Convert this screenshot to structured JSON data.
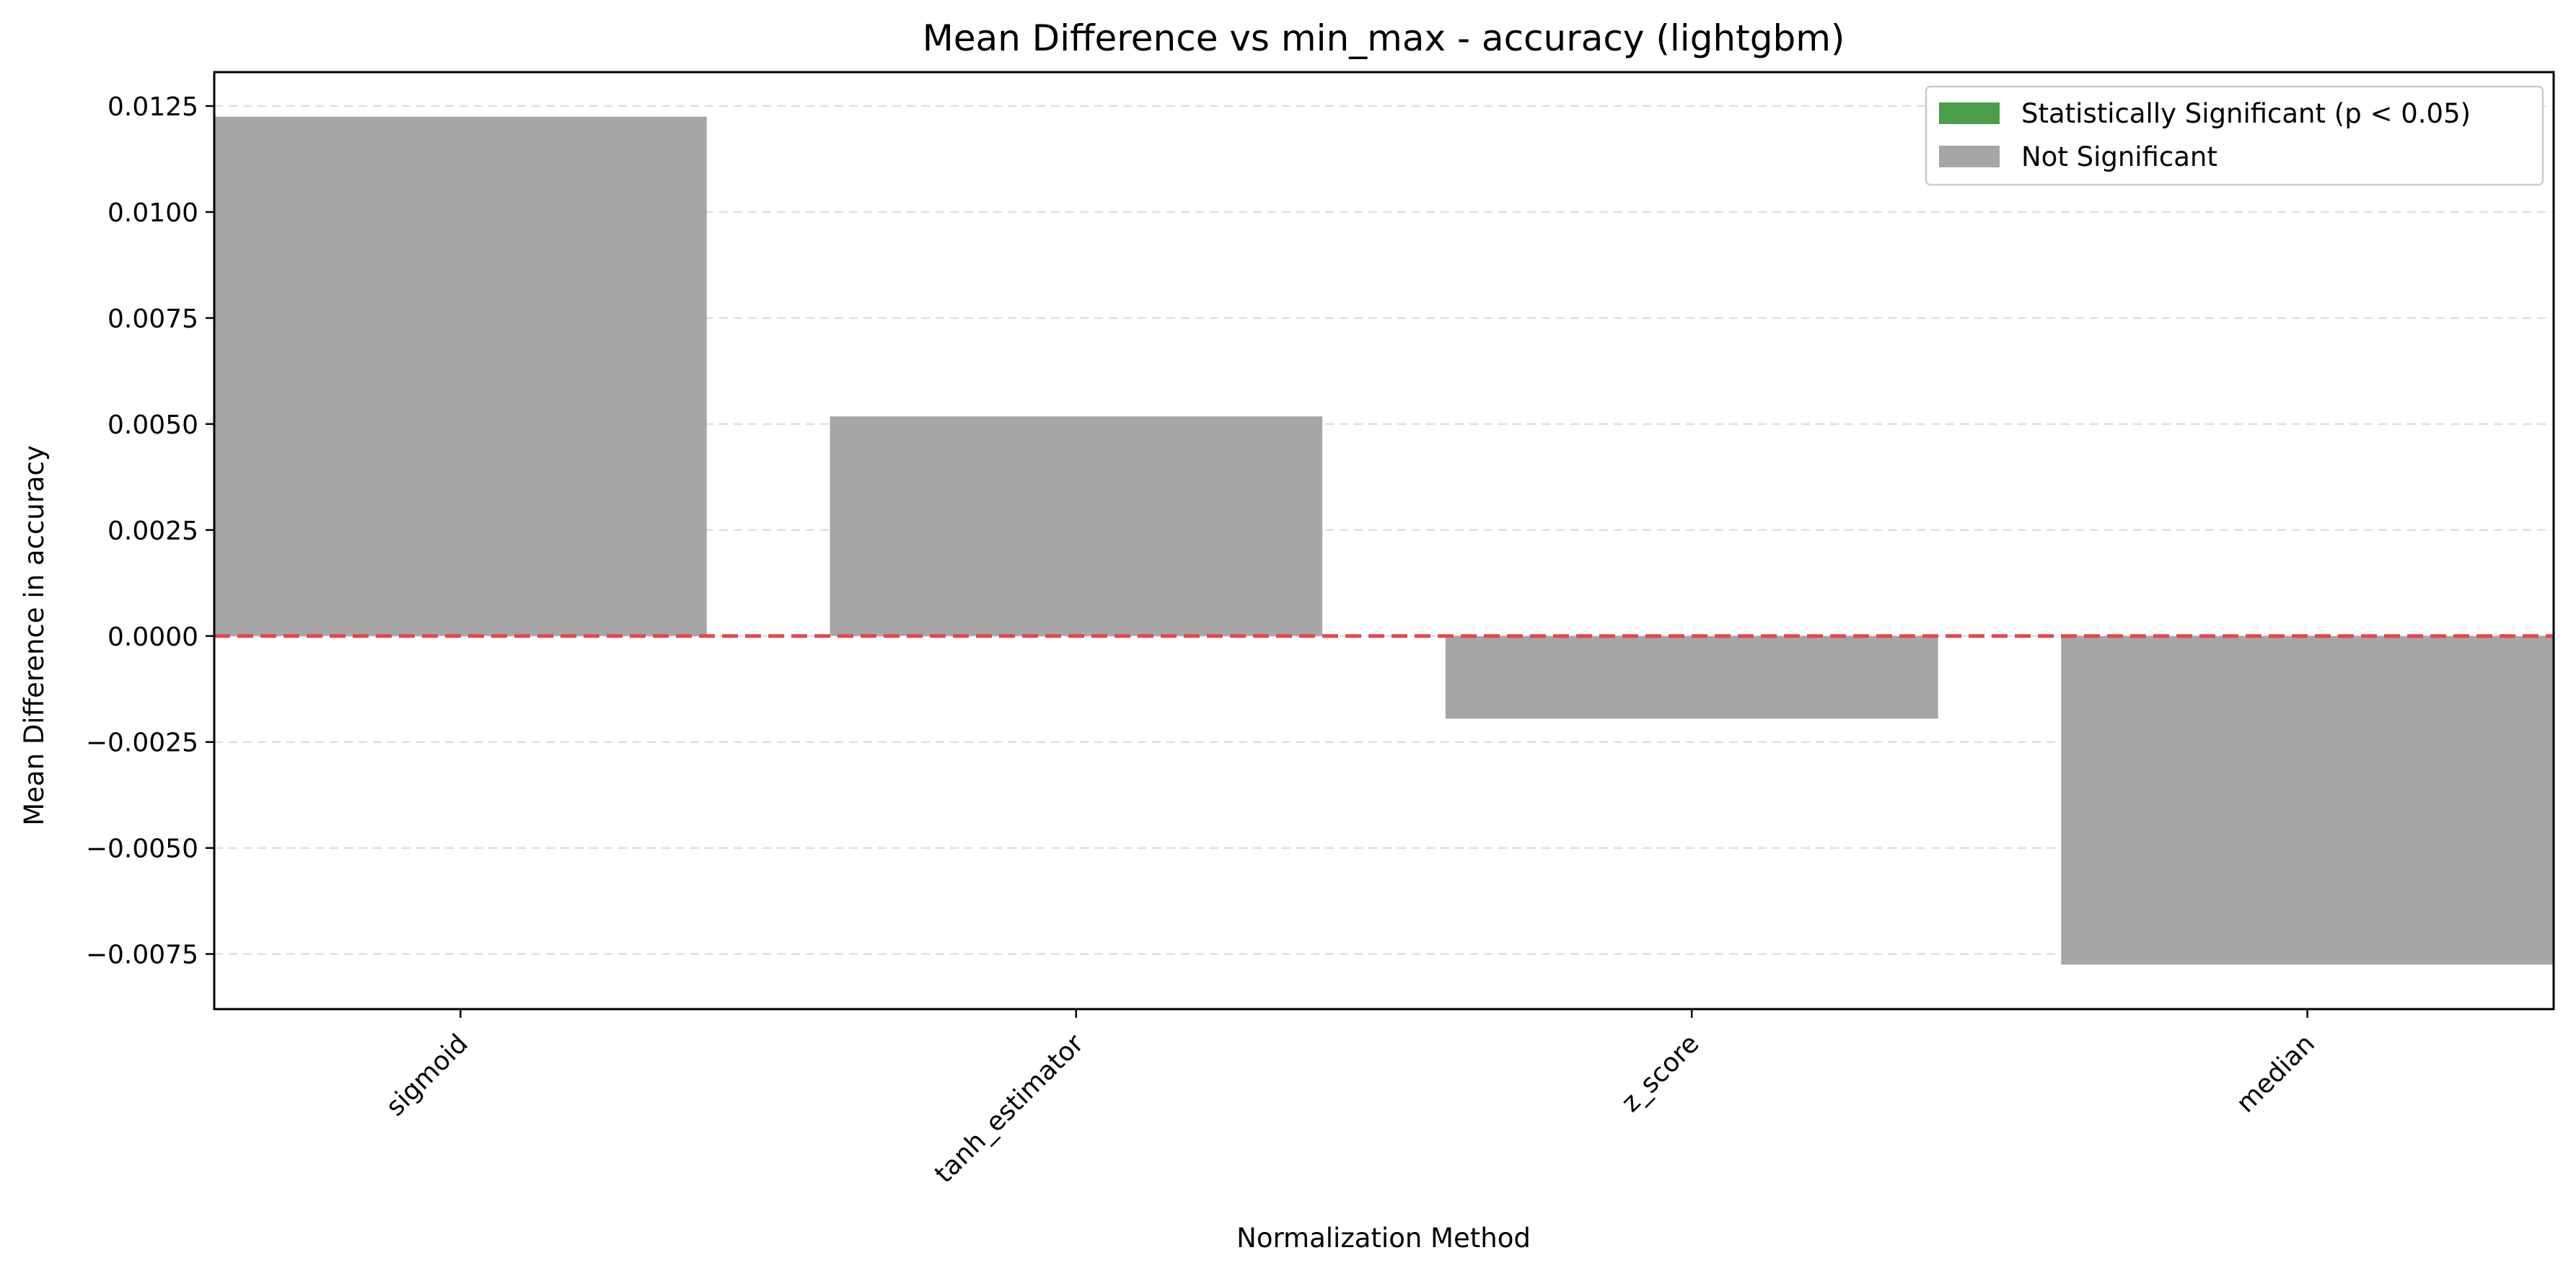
{
  "chart_data": {
    "type": "bar",
    "title": "Mean Difference vs min_max - accuracy (lightgbm)",
    "xlabel": "Normalization Method",
    "ylabel": "Mean Difference in accuracy",
    "categories": [
      "sigmoid",
      "tanh_estimator",
      "z_score",
      "median"
    ],
    "values": [
      0.01225,
      0.00518,
      -0.00195,
      -0.00775
    ],
    "significant": [
      false,
      false,
      false,
      false
    ],
    "ylim": [
      -0.0088,
      0.0133
    ],
    "yticks": [
      -0.0075,
      -0.005,
      -0.0025,
      0.0,
      0.0025,
      0.005,
      0.0075,
      0.01,
      0.0125
    ],
    "ytick_labels": [
      "−0.0075",
      "−0.0050",
      "−0.0025",
      "0.0000",
      "0.0025",
      "0.0050",
      "0.0075",
      "0.0100",
      "0.0125"
    ],
    "reference_line": 0,
    "grid": "y-dashed",
    "legend_position": "top-right",
    "legend": [
      {
        "label": "Statistically Significant (p < 0.05)",
        "color": "#4a9e4a"
      },
      {
        "label": "Not Significant",
        "color": "#a6a6a6"
      }
    ],
    "colors": {
      "significant": "#4a9e4a",
      "not_significant": "#a6a6a6",
      "reference_line": "#e84545",
      "grid": "#e0e0e0"
    }
  }
}
